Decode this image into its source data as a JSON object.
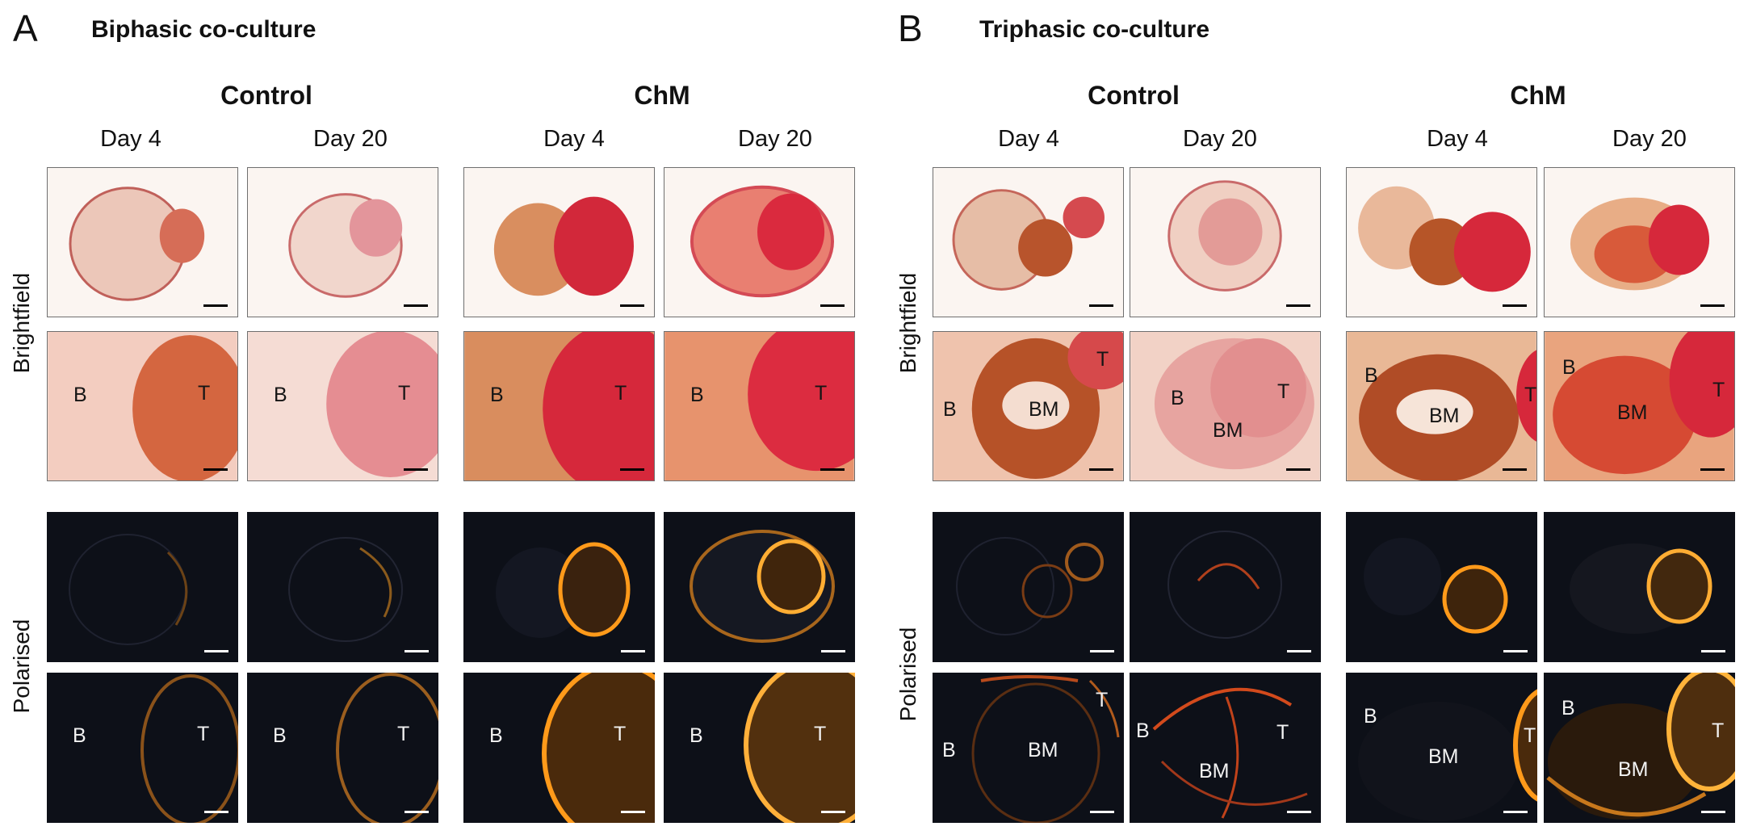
{
  "panels": [
    {
      "letter": "A",
      "title": "Biphasic co-culture",
      "groups": [
        {
          "name": "Control",
          "days": [
            "Day 4",
            "Day 20"
          ]
        },
        {
          "name": "ChM",
          "days": [
            "Day 4",
            "Day 20"
          ]
        }
      ],
      "row_labels": {
        "brightfield": "Brightfield",
        "polarised": "Polarised"
      },
      "zoom_labels": [
        [
          "B",
          "T"
        ],
        [
          "B",
          "T"
        ],
        [
          "B",
          "T"
        ],
        [
          "B",
          "T"
        ]
      ]
    },
    {
      "letter": "B",
      "title": "Triphasic co-culture",
      "groups": [
        {
          "name": "Control",
          "days": [
            "Day 4",
            "Day 20"
          ]
        },
        {
          "name": "ChM",
          "days": [
            "Day 4",
            "Day 20"
          ]
        }
      ],
      "row_labels": {
        "brightfield": "Brightfield",
        "polarised": "Polarised"
      },
      "zoom_labels": [
        [
          "B",
          "BM",
          "T"
        ],
        [
          "B",
          "BM",
          "T"
        ],
        [
          "B",
          "BM",
          "T"
        ],
        [
          "B",
          "BM",
          "T"
        ]
      ]
    }
  ],
  "colors": {
    "brightfield_bg": "#fbf5f1",
    "polarised_bg": "#0d1018",
    "stain_red": "#d8283a",
    "stain_orange": "#c8693e",
    "birefringence": "#ff9a1a"
  }
}
